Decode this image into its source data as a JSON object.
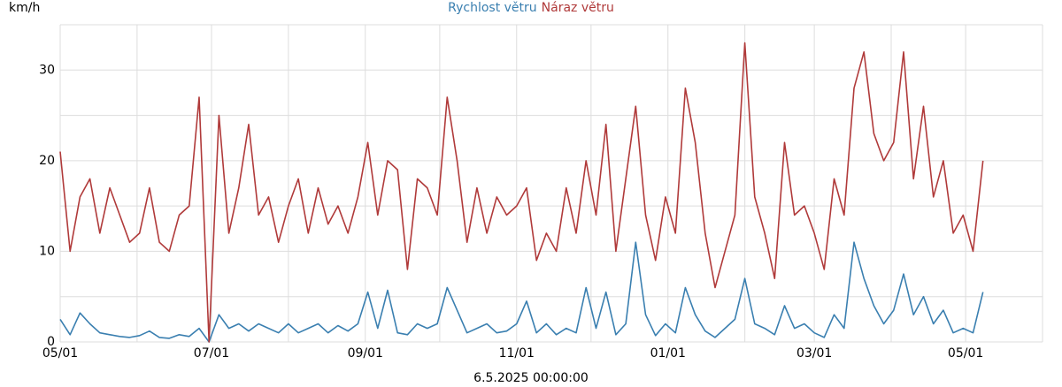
{
  "chart_data": {
    "type": "line",
    "y_label": "km/h",
    "x_label": "6.5.2025 00:00:00",
    "x": [
      "05/01",
      "05/05",
      "05/09",
      "05/13",
      "05/17",
      "05/21",
      "05/25",
      "05/29",
      "06/02",
      "06/06",
      "06/10",
      "06/14",
      "06/18",
      "06/22",
      "06/26",
      "06/30",
      "07/04",
      "07/08",
      "07/12",
      "07/16",
      "07/20",
      "07/24",
      "07/28",
      "08/01",
      "08/05",
      "08/09",
      "08/13",
      "08/17",
      "08/21",
      "08/25",
      "08/29",
      "09/02",
      "09/06",
      "09/10",
      "09/14",
      "09/18",
      "09/22",
      "09/26",
      "09/30",
      "10/04",
      "10/08",
      "10/12",
      "10/16",
      "10/20",
      "10/24",
      "10/28",
      "11/01",
      "11/05",
      "11/09",
      "11/13",
      "11/17",
      "11/21",
      "11/25",
      "11/29",
      "12/03",
      "12/07",
      "12/11",
      "12/15",
      "12/19",
      "12/23",
      "12/27",
      "12/31",
      "01/04",
      "01/08",
      "01/12",
      "01/16",
      "01/20",
      "01/24",
      "01/28",
      "02/01",
      "02/05",
      "02/09",
      "02/13",
      "02/17",
      "02/21",
      "02/25",
      "03/01",
      "03/05",
      "03/09",
      "03/13",
      "03/17",
      "03/21",
      "03/25",
      "03/29",
      "04/02",
      "04/06",
      "04/10",
      "04/14",
      "04/18",
      "04/22",
      "04/26",
      "04/30",
      "05/04",
      "05/08"
    ],
    "series": [
      {
        "name": "Rychlost větru",
        "color": "#3a7fb0",
        "values": [
          2.5,
          0.8,
          3.2,
          2,
          1,
          0.8,
          0.6,
          0.5,
          0.7,
          1.2,
          0.5,
          0.4,
          0.8,
          0.6,
          1.5,
          0,
          3,
          1.5,
          2,
          1.2,
          2,
          1.5,
          1,
          2,
          1,
          1.5,
          2,
          1,
          1.8,
          1.2,
          2,
          5.5,
          1.5,
          5.7,
          1,
          0.8,
          2,
          1.5,
          2,
          6,
          3.5,
          1,
          1.5,
          2,
          1,
          1.2,
          2,
          4.5,
          1,
          2,
          0.8,
          1.5,
          1,
          6,
          1.5,
          5.5,
          0.8,
          2,
          11,
          3,
          0.7,
          2,
          1,
          6,
          3,
          1.2,
          0.5,
          1.5,
          2.5,
          7,
          2,
          1.5,
          0.8,
          4,
          1.5,
          2,
          1,
          0.5,
          3,
          1.5,
          11,
          7,
          4,
          2,
          3.5,
          7.5,
          3,
          5,
          2,
          3.5,
          1,
          1.5,
          1,
          5.5
        ]
      },
      {
        "name": "Náraz větru",
        "color": "#b03a3a",
        "values": [
          21,
          10,
          16,
          18,
          12,
          17,
          14,
          11,
          12,
          17,
          11,
          10,
          14,
          15,
          27,
          0,
          25,
          12,
          17,
          24,
          14,
          16,
          11,
          15,
          18,
          12,
          17,
          13,
          15,
          12,
          16,
          22,
          14,
          20,
          19,
          8,
          18,
          17,
          14,
          27,
          20,
          11,
          17,
          12,
          16,
          14,
          15,
          17,
          9,
          12,
          10,
          17,
          12,
          20,
          14,
          24,
          10,
          18,
          26,
          14,
          9,
          16,
          12,
          28,
          22,
          12,
          6,
          10,
          14,
          33,
          16,
          12,
          7,
          22,
          14,
          15,
          12,
          8,
          18,
          14,
          28,
          32,
          23,
          20,
          22,
          32,
          18,
          26,
          16,
          20,
          12,
          14,
          10,
          20
        ]
      }
    ],
    "xlim": [
      "05/01",
      "06/01"
    ],
    "xticks": [
      "05/01",
      "07/01",
      "09/01",
      "11/01",
      "01/01",
      "03/01",
      "05/01"
    ],
    "minor_xticks": [
      "06/01",
      "08/01",
      "10/01",
      "12/01",
      "02/01",
      "04/01"
    ],
    "ylim": [
      0,
      35
    ],
    "yticks": [
      0,
      10,
      20,
      30
    ],
    "minor_yticks": [
      5,
      15,
      25,
      35
    ],
    "grid": true
  }
}
